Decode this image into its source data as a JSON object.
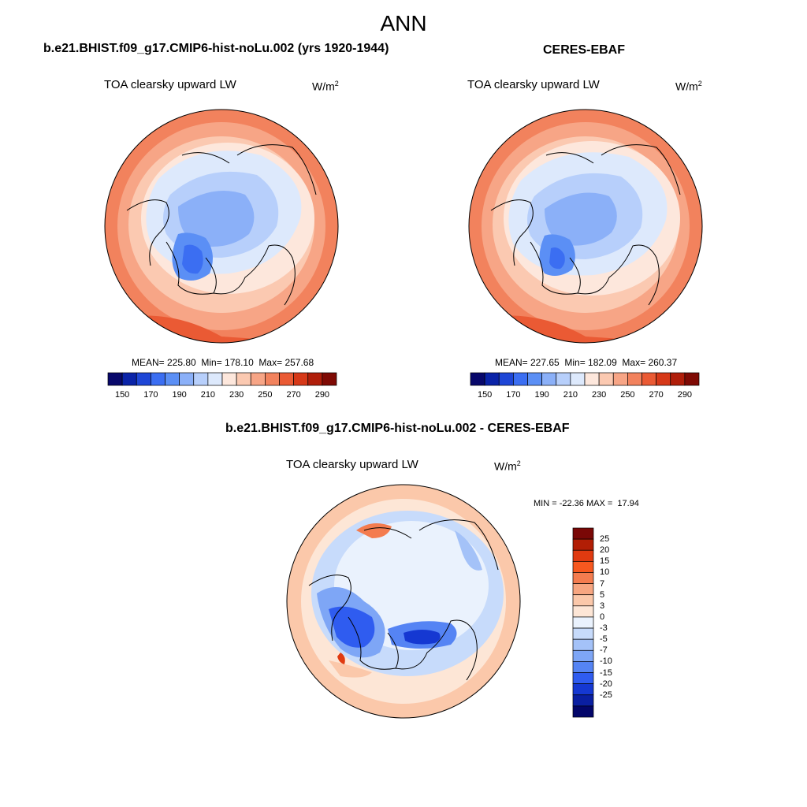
{
  "main_title": "ANN",
  "left_panel": {
    "case_title": "b.e21.BHIST.f09_g17.CMIP6-hist-noLu.002 (yrs 1920-1944)",
    "variable": "TOA clearsky upward LW",
    "units_base": "W/m",
    "units_exp": "2",
    "stats": "MEAN= 225.80  Min= 178.10  Max= 257.68"
  },
  "right_panel": {
    "case_title": "CERES-EBAF",
    "variable": "TOA clearsky upward LW",
    "units_base": "W/m",
    "units_exp": "2",
    "stats": "MEAN= 227.65  Min= 182.09  Max= 260.37"
  },
  "diff_panel": {
    "case_title": "b.e21.BHIST.f09_g17.CMIP6-hist-noLu.002 - CERES-EBAF",
    "variable": "TOA clearsky upward LW",
    "units_base": "W/m",
    "units_exp": "2",
    "stats": "MIN = -22.36 MAX =  17.94"
  },
  "abs_colorbar": {
    "colors": [
      "#08086b",
      "#0a23a8",
      "#1e46d6",
      "#3b6ef2",
      "#5b8ff5",
      "#8bb0f8",
      "#b7cffb",
      "#dde9fc",
      "#fde7dc",
      "#fbc9b1",
      "#f7a586",
      "#f2825d",
      "#ea5a34",
      "#d63818",
      "#b01e0a",
      "#7f0a04"
    ],
    "tick_labels": [
      "150",
      "170",
      "190",
      "210",
      "230",
      "250",
      "270",
      "290"
    ]
  },
  "diff_colorbar": {
    "colors": [
      "#7a0806",
      "#b21e05",
      "#e03a10",
      "#f7581f",
      "#f47c4f",
      "#f7a681",
      "#fbc8aa",
      "#fde6d6",
      "#eaf2fd",
      "#c7dbfb",
      "#a4c2f8",
      "#7ea6f6",
      "#5584f4",
      "#2f5cf0",
      "#1538d2",
      "#0a1fa2",
      "#03066a"
    ],
    "tick_labels": [
      "25",
      "20",
      "15",
      "10",
      "7",
      "5",
      "3",
      "0",
      "-3",
      "-5",
      "-7",
      "-10",
      "-15",
      "-20",
      "-25"
    ]
  }
}
